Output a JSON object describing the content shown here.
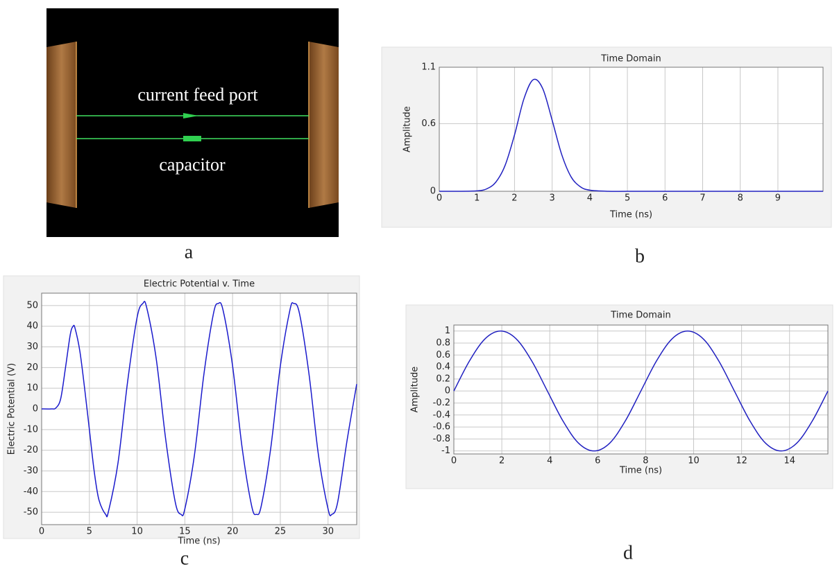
{
  "diagram": {
    "labels": [
      "current feed port",
      "capacitor"
    ],
    "caption": "a"
  },
  "chart_data": [
    {
      "type": "line",
      "caption": "b",
      "title": "Time Domain",
      "xlabel": "Time (ns)",
      "ylabel": "Amplitude",
      "x": [
        0,
        0.5,
        1,
        1.25,
        1.5,
        1.75,
        2,
        2.25,
        2.5,
        2.75,
        3,
        3.25,
        3.5,
        3.75,
        4,
        4.5,
        5,
        6,
        7,
        8,
        9,
        10.2
      ],
      "values": [
        0,
        0,
        0.004,
        0.02,
        0.08,
        0.23,
        0.5,
        0.82,
        0.99,
        0.91,
        0.63,
        0.33,
        0.13,
        0.04,
        0.01,
        0,
        0,
        0,
        0,
        0,
        0,
        0
      ],
      "color": "#2020c0",
      "xlim": [
        0,
        10.2
      ],
      "ylim": [
        0,
        1.1
      ],
      "xticks": [
        0,
        1,
        2,
        3,
        4,
        5,
        6,
        7,
        8,
        9
      ],
      "yticks": [
        0,
        0.6,
        1.1
      ],
      "grid": true
    },
    {
      "type": "line",
      "caption": "c",
      "title": "Electric Potential v. Time",
      "xlabel": "Time (ns)",
      "ylabel": "Electric Potential (V)",
      "x": [
        0,
        1,
        1.5,
        2,
        2.5,
        3,
        3.3,
        3.5,
        4,
        4.5,
        5,
        5.5,
        6,
        6.7,
        7,
        8,
        9,
        10,
        10.6,
        11,
        12,
        13,
        14,
        14.6,
        15,
        16,
        17,
        18,
        18.5,
        19,
        20,
        21,
        22,
        22.5,
        23,
        24,
        25,
        26,
        26.4,
        27,
        28,
        29,
        30,
        30.4,
        31,
        32,
        33
      ],
      "values": [
        0,
        0,
        0.5,
        5,
        20,
        36,
        40,
        39,
        28,
        10,
        -10,
        -30,
        -44,
        -51,
        -49.6,
        -26.1,
        13,
        44.3,
        51,
        49.1,
        24.3,
        -14.9,
        -45.2,
        -51,
        -48.4,
        -22.5,
        16.9,
        46.2,
        51,
        47.8,
        20.8,
        -18.8,
        -47,
        -51,
        -47,
        -18.9,
        20.7,
        47.7,
        51,
        46.3,
        17,
        -22.5,
        -48.4,
        -51,
        -45.3,
        -15,
        12
      ],
      "color": "#1a1acc",
      "xlim": [
        0,
        33
      ],
      "ylim": [
        -56,
        56
      ],
      "xticks": [
        0,
        5,
        10,
        15,
        20,
        25,
        30
      ],
      "yticks": [
        -50,
        -40,
        -30,
        -20,
        -10,
        0,
        10,
        20,
        30,
        40,
        50
      ],
      "grid": true
    },
    {
      "type": "line",
      "caption": "d",
      "title": "Time Domain",
      "xlabel": "Time (ns)",
      "ylabel": "Amplitude",
      "x": [
        0,
        0.65,
        1.3,
        1.95,
        2.6,
        3.25,
        3.9,
        4.55,
        5.2,
        5.85,
        6.5,
        7.15,
        7.8,
        8.45,
        9.1,
        9.75,
        10.4,
        11.05,
        11.7,
        12.35,
        13,
        13.65,
        14.3,
        14.95,
        15.6
      ],
      "values": [
        0,
        0.5,
        0.87,
        1,
        0.87,
        0.5,
        0,
        -0.5,
        -0.87,
        -1,
        -0.87,
        -0.5,
        0,
        0.5,
        0.87,
        1,
        0.87,
        0.5,
        0,
        -0.5,
        -0.87,
        -1,
        -0.87,
        -0.5,
        0
      ],
      "color": "#2020c0",
      "xlim": [
        0,
        15.6
      ],
      "ylim": [
        -1.05,
        1.1
      ],
      "xticks": [
        0,
        2,
        4,
        6,
        8,
        10,
        12,
        14
      ],
      "yticks": [
        -1,
        -0.8,
        -0.6,
        -0.4,
        -0.2,
        0,
        0.2,
        0.4,
        0.6,
        0.8,
        1
      ],
      "grid": true
    }
  ]
}
